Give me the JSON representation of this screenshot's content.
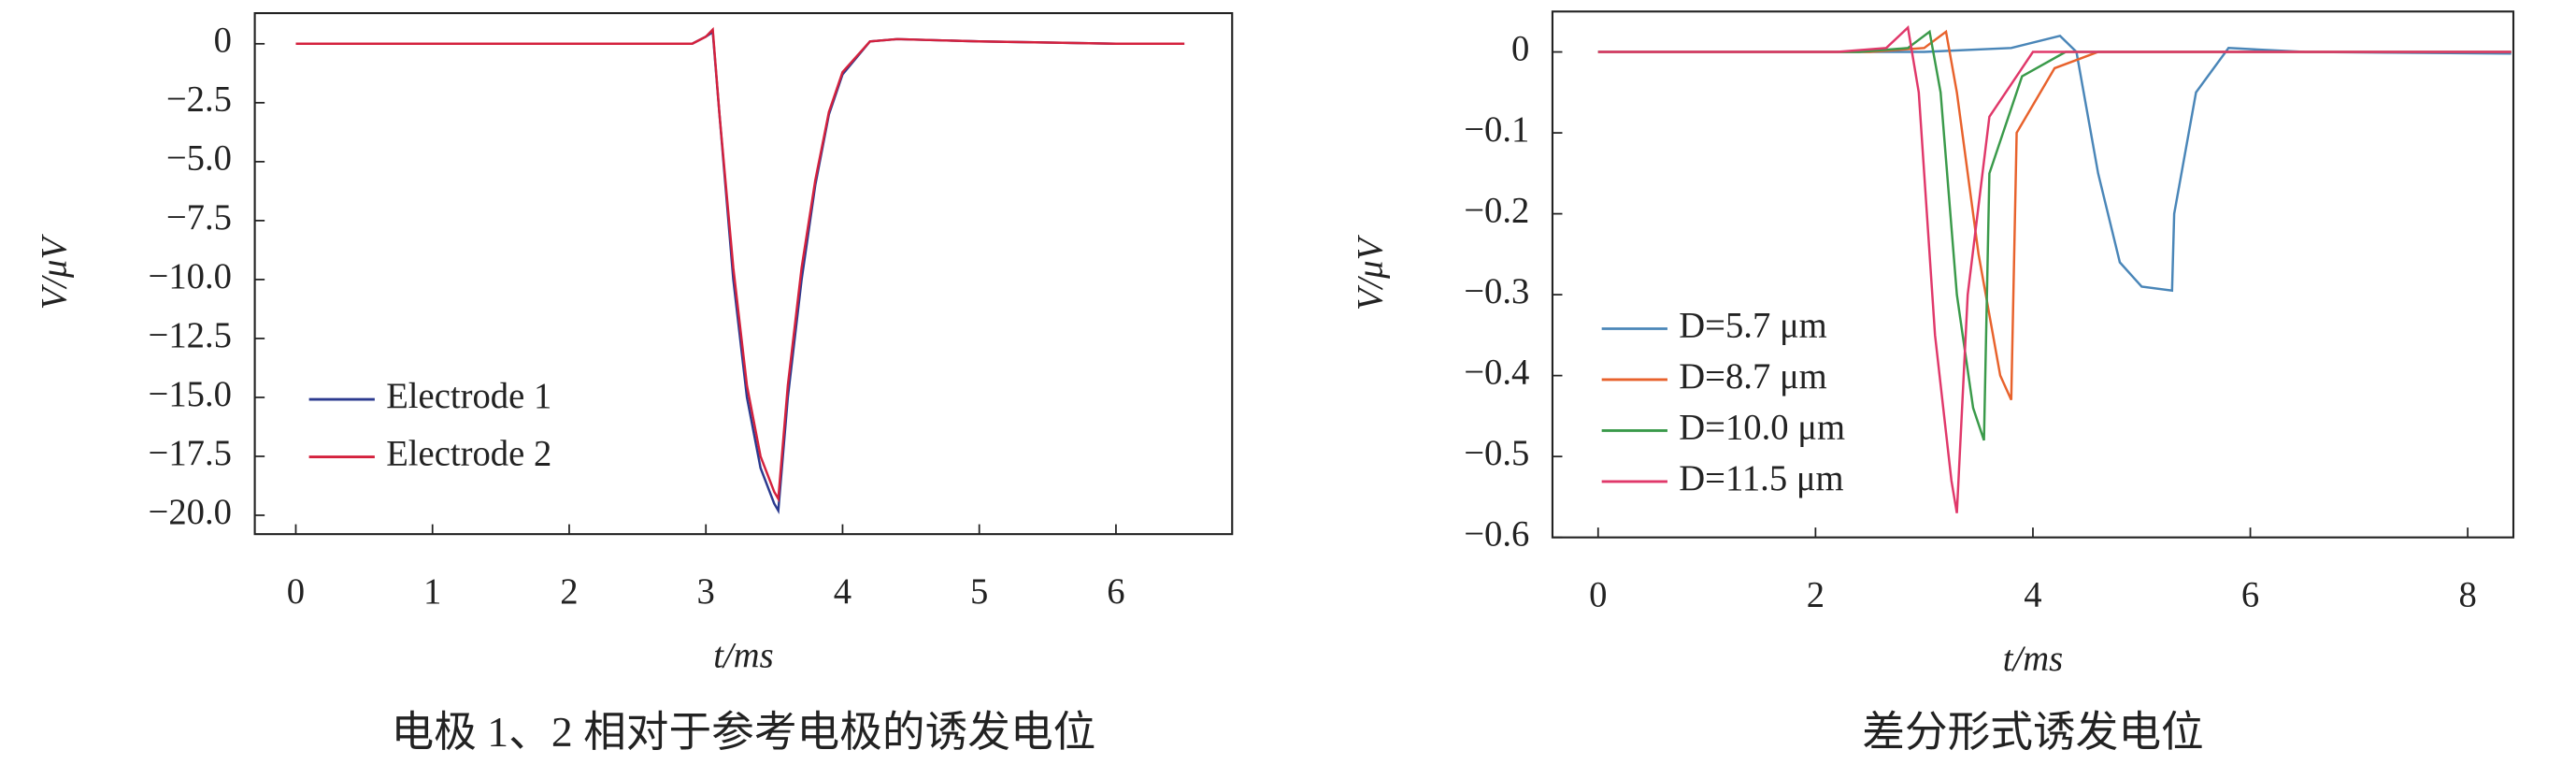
{
  "chart_data": [
    {
      "type": "line",
      "caption": "电极 1、2 相对于参考电极的诱发电位",
      "xlabel": "t/ms",
      "ylabel": "V/μV",
      "xlim": [
        -0.3,
        6.85
      ],
      "ylim": [
        -20.8,
        1.3
      ],
      "xticks": [
        0,
        1,
        2,
        3,
        4,
        5,
        6
      ],
      "yticks": [
        0,
        {
          "value": -2.5,
          "label": "−2.5"
        },
        {
          "value": -5,
          "label": "−5.0"
        },
        {
          "value": -7.5,
          "label": "−7.5"
        },
        {
          "value": -10,
          "label": "−10.0"
        },
        {
          "value": -12.5,
          "label": "−12.5"
        },
        {
          "value": -15,
          "label": "−15.0"
        },
        {
          "value": -17.5,
          "label": "−17.5"
        },
        {
          "value": -20,
          "label": "−20.0"
        }
      ],
      "legend": "lower left",
      "series": [
        {
          "name": "Electrode 1",
          "color": "#2b3a8f",
          "x": [
            0,
            1,
            2,
            2.9,
            3.0,
            3.05,
            3.1,
            3.2,
            3.3,
            3.4,
            3.5,
            3.53,
            3.6,
            3.7,
            3.8,
            3.9,
            4.0,
            4.2,
            4.4,
            5,
            6,
            6.5
          ],
          "values": [
            0,
            0,
            0,
            0,
            0.3,
            0.5,
            -3,
            -10,
            -15,
            -18,
            -19.5,
            -19.8,
            -15,
            -10,
            -6,
            -3,
            -1.3,
            0.1,
            0.2,
            0.1,
            0,
            0
          ]
        },
        {
          "name": "Electrode 2",
          "color": "#d4213d",
          "x": [
            0,
            1,
            2,
            2.9,
            3.0,
            3.05,
            3.1,
            3.2,
            3.3,
            3.4,
            3.5,
            3.53,
            3.6,
            3.7,
            3.8,
            3.9,
            4.0,
            4.2,
            4.4,
            5,
            6,
            6.5
          ],
          "values": [
            0,
            0,
            0,
            0,
            0.3,
            0.6,
            -3,
            -9.5,
            -14.5,
            -17.5,
            -19,
            -19.3,
            -14.5,
            -9.5,
            -5.8,
            -2.9,
            -1.2,
            0.1,
            0.2,
            0.1,
            0,
            0
          ]
        }
      ]
    },
    {
      "type": "line",
      "caption": "差分形式诱发电位",
      "xlabel": "t/ms",
      "ylabel": "V/μV",
      "xlim": [
        -0.42,
        8.42
      ],
      "ylim": [
        -0.6,
        0.05
      ],
      "xticks": [
        0,
        2,
        4,
        6,
        8
      ],
      "yticks": [
        0,
        {
          "value": -0.1,
          "label": "−0.1"
        },
        {
          "value": -0.2,
          "label": "−0.2"
        },
        {
          "value": -0.3,
          "label": "−0.3"
        },
        {
          "value": -0.4,
          "label": "−0.4"
        },
        {
          "value": -0.5,
          "label": "−0.5"
        },
        {
          "value": -0.6,
          "label": "−0.6"
        }
      ],
      "legend": "lower left",
      "series": [
        {
          "name": "D=5.7 μm",
          "color": "#4a86b8",
          "x": [
            0,
            2,
            3,
            3.8,
            4.25,
            4.4,
            4.6,
            4.8,
            5.0,
            5.28,
            5.3,
            5.5,
            5.8,
            6.5,
            8.4
          ],
          "values": [
            0,
            0,
            0,
            0.005,
            0.02,
            0,
            -0.15,
            -0.26,
            -0.29,
            -0.295,
            -0.2,
            -0.05,
            0.005,
            0,
            -0.002
          ]
        },
        {
          "name": "D=8.7 μm",
          "color": "#e8622c",
          "x": [
            0,
            2.5,
            3.0,
            3.2,
            3.3,
            3.5,
            3.7,
            3.8,
            3.85,
            4.2,
            4.6,
            8.4
          ],
          "values": [
            0,
            0,
            0.005,
            0.025,
            -0.05,
            -0.25,
            -0.4,
            -0.43,
            -0.1,
            -0.02,
            0,
            0
          ]
        },
        {
          "name": "D=10.0 μm",
          "color": "#3a9a4a",
          "x": [
            0,
            2.4,
            2.85,
            3.05,
            3.15,
            3.3,
            3.45,
            3.55,
            3.6,
            3.9,
            4.3,
            8.4
          ],
          "values": [
            0,
            0,
            0.005,
            0.025,
            -0.05,
            -0.3,
            -0.44,
            -0.48,
            -0.15,
            -0.03,
            0,
            0
          ]
        },
        {
          "name": "D=11.5 μm",
          "color": "#e0386a",
          "x": [
            0,
            2.2,
            2.65,
            2.85,
            2.95,
            3.1,
            3.25,
            3.3,
            3.4,
            3.6,
            4.0,
            8.4
          ],
          "values": [
            0,
            0,
            0.005,
            0.03,
            -0.05,
            -0.35,
            -0.53,
            -0.57,
            -0.3,
            -0.08,
            0,
            0
          ]
        }
      ]
    }
  ]
}
